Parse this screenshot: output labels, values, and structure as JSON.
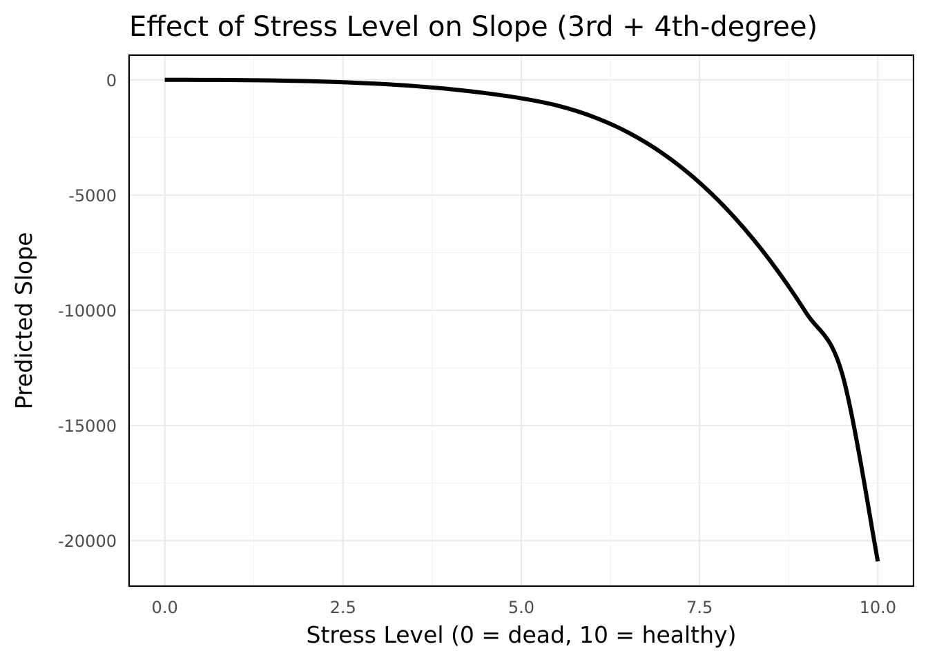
{
  "chart_data": {
    "type": "line",
    "title": "Effect of Stress Level on Slope (3rd + 4th-degree)",
    "xlabel": "Stress Level (0 = dead, 10 = healthy)",
    "ylabel": "Predicted Slope",
    "xlim": [
      -0.5,
      10.5
    ],
    "ylim": [
      -21975,
      1070
    ],
    "x_ticks": [
      0.0,
      2.5,
      5.0,
      7.5,
      10.0
    ],
    "x_tick_labels": [
      "0.0",
      "2.5",
      "5.0",
      "7.5",
      "10.0"
    ],
    "y_ticks": [
      0,
      -5000,
      -10000,
      -15000,
      -20000
    ],
    "y_tick_labels": [
      "0",
      "-5000",
      "-10000",
      "-15000",
      "-20000"
    ],
    "grid": true,
    "legend": "none",
    "series": [
      {
        "color": "#000000",
        "x": [
          0,
          0.5,
          1.0,
          1.5,
          2.0,
          2.5,
          3.0,
          3.5,
          4.0,
          4.5,
          5.0,
          5.5,
          6.0,
          6.5,
          7.0,
          7.5,
          8.0,
          8.5,
          9.0,
          9.5,
          10.0
        ],
        "y": [
          0,
          -2,
          -10,
          -27,
          -57,
          -104,
          -173,
          -271,
          -404,
          -578,
          -801,
          -1113,
          -1594,
          -2288,
          -3233,
          -4463,
          -6008,
          -7892,
          -10137,
          -12758,
          -20900
        ]
      }
    ]
  }
}
